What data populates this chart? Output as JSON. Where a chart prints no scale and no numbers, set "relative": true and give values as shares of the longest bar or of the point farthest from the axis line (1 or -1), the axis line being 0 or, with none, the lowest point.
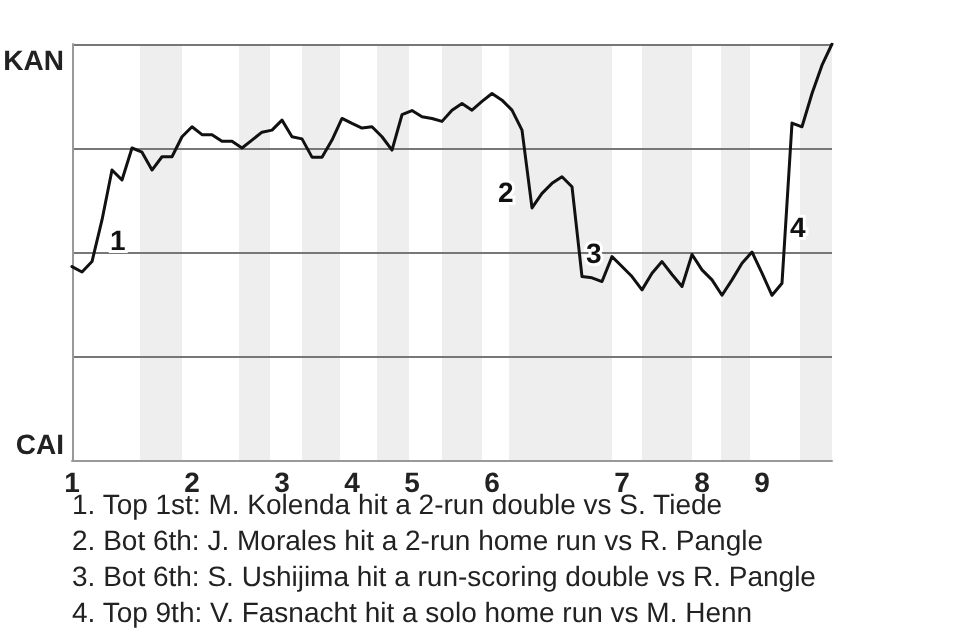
{
  "chart_data": {
    "type": "line",
    "categories": [
      "1",
      null,
      null,
      null,
      null,
      null,
      null,
      null,
      null,
      null,
      null,
      null,
      "2",
      null,
      null,
      null,
      null,
      null,
      null,
      null,
      null,
      "3",
      null,
      null,
      null,
      null,
      null,
      null,
      "4",
      null,
      null,
      null,
      null,
      null,
      "5",
      null,
      null,
      null,
      null,
      null,
      null,
      null,
      "6",
      null,
      null,
      null,
      null,
      null,
      null,
      null,
      null,
      null,
      null,
      null,
      null,
      "7",
      null,
      null,
      null,
      null,
      null,
      null,
      null,
      "8",
      null,
      null,
      null,
      null,
      null,
      "9",
      null,
      null,
      null,
      null,
      null,
      null,
      null
    ],
    "relative": true,
    "series": [
      {
        "color": "#111111",
        "values": [
          0.465,
          0.452,
          0.477,
          0.577,
          0.697,
          0.673,
          0.75,
          0.74,
          0.697,
          0.729,
          0.729,
          0.777,
          0.801,
          0.782,
          0.782,
          0.766,
          0.766,
          0.75,
          0.769,
          0.788,
          0.793,
          0.817,
          0.777,
          0.772,
          0.728,
          0.728,
          0.769,
          0.821,
          0.809,
          0.798,
          0.801,
          0.777,
          0.745,
          0.83,
          0.84,
          0.825,
          0.821,
          0.814,
          0.841,
          0.857,
          0.841,
          0.862,
          0.881,
          0.865,
          0.841,
          0.793,
          0.606,
          0.641,
          0.665,
          0.681,
          0.657,
          0.441,
          0.438,
          0.429,
          0.489,
          0.465,
          0.441,
          0.409,
          0.449,
          0.477,
          0.446,
          0.417,
          0.494,
          0.457,
          0.433,
          0.396,
          0.433,
          0.473,
          0.5,
          0.449,
          0.396,
          0.425,
          0.81,
          0.801,
          0.881,
          0.949,
          1
        ]
      }
    ],
    "grid": "y",
    "marker": "none",
    "line_style": "solid",
    "annotations": [
      "KAN",
      "CAI",
      "1",
      "2",
      "3",
      "4",
      "1. Top 1st: M. Kolenda hit a 2-run double vs S. Tiede",
      "2. Bot 6th: J. Morales hit a 2-run home run vs R. Pangle",
      "3. Bot 6th: S. Ushijima hit a run-scoring double vs R. Pangle",
      "4. Top 9th: V. Fasnacht hit a solo home run vs M. Henn"
    ]
  }
}
